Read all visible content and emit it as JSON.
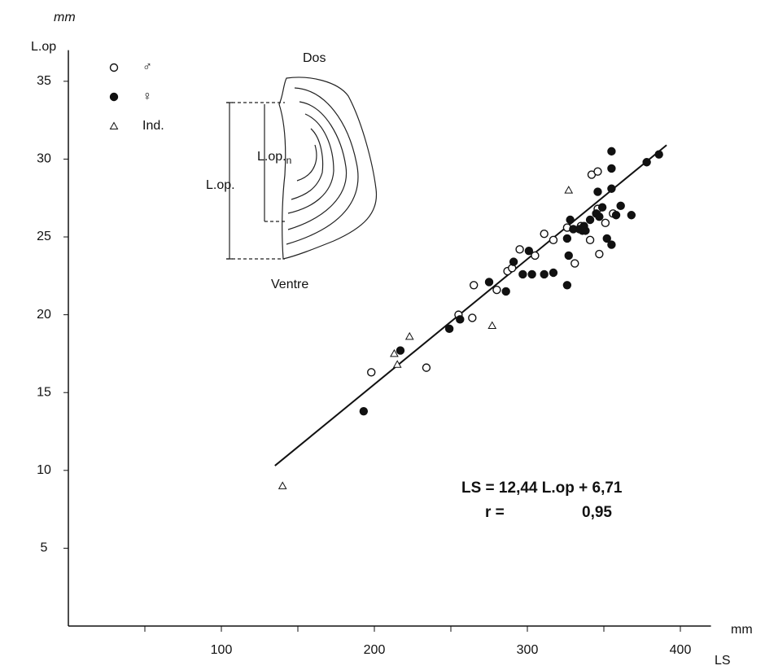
{
  "chart_data": {
    "type": "scatter",
    "y_unit": "mm",
    "y_label": "L.op",
    "x_unit": "mm",
    "x_label": "LS",
    "xlim": [
      0,
      420
    ],
    "ylim": [
      0,
      37
    ],
    "xticks": [
      100,
      200,
      300,
      400
    ],
    "xminor": [
      50,
      150,
      250,
      350
    ],
    "yticks": [
      5,
      10,
      15,
      20,
      25,
      30,
      35
    ],
    "series": [
      {
        "name": "♂",
        "marker": "open",
        "color": "#111",
        "x": [
          198,
          234,
          255,
          264,
          280,
          265,
          287,
          290,
          295,
          305,
          311,
          317,
          326,
          331,
          335,
          341,
          342,
          346,
          346,
          347,
          351,
          356
        ],
        "values": [
          16.3,
          16.6,
          20.0,
          19.8,
          21.6,
          21.9,
          22.8,
          23.0,
          24.2,
          23.8,
          25.2,
          24.8,
          25.6,
          23.3,
          25.7,
          24.8,
          29.0,
          29.2,
          26.8,
          23.9,
          25.9,
          26.5
        ]
      },
      {
        "name": "♀",
        "marker": "filled",
        "color": "#111",
        "x": [
          193,
          217,
          249,
          256,
          275,
          286,
          291,
          301,
          297,
          303,
          311,
          317,
          326,
          326,
          327,
          328,
          330,
          334,
          336,
          338,
          337,
          341,
          345,
          346,
          347,
          349,
          352,
          355,
          355,
          355,
          355,
          358,
          361,
          368,
          378,
          386
        ],
        "values": [
          13.8,
          17.7,
          19.1,
          19.7,
          22.1,
          21.5,
          23.4,
          24.1,
          22.6,
          22.6,
          22.6,
          22.7,
          21.9,
          24.9,
          23.8,
          26.1,
          25.5,
          25.5,
          25.4,
          25.4,
          25.7,
          26.1,
          26.5,
          27.9,
          26.3,
          26.9,
          24.9,
          28.1,
          29.4,
          30.5,
          24.5,
          26.4,
          27.0,
          26.4,
          29.8,
          30.3
        ]
      },
      {
        "name": "Ind.",
        "marker": "triangle",
        "color": "#111",
        "x": [
          140,
          213,
          215,
          223,
          277,
          327
        ],
        "values": [
          9.0,
          17.5,
          16.8,
          18.6,
          19.3,
          28.0
        ]
      }
    ],
    "fit": {
      "x": [
        135,
        391
      ],
      "values": [
        10.3,
        30.9
      ]
    },
    "equation": "LS = 12,44 L.op + 6,71",
    "r_label": "r =",
    "r_value": "0,95",
    "inset": {
      "top": "Dos",
      "bottom": "Ventre",
      "inner": "L.op.",
      "inner_sub": "n",
      "outer": "L.op."
    }
  }
}
